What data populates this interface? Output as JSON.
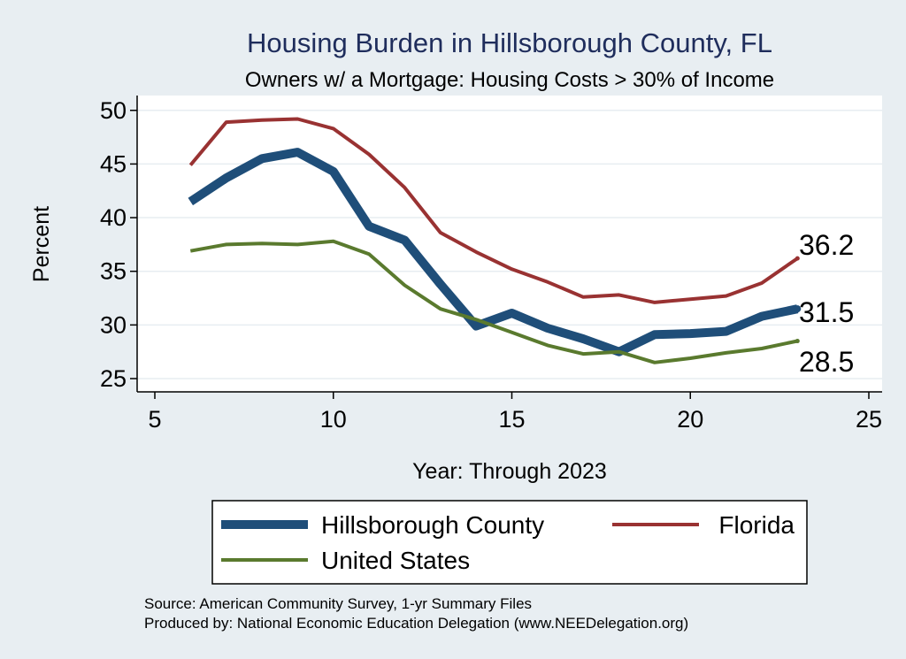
{
  "chart_data": {
    "type": "line",
    "title": "Housing Burden in Hillsborough County, FL",
    "subtitle": "Owners w/ a Mortgage: Housing Costs > 30% of Income",
    "xlabel": "Year: Through 2023",
    "ylabel": "Percent",
    "xlim": [
      5,
      25
    ],
    "ylim": [
      24.5,
      50.5
    ],
    "xticks": [
      5,
      10,
      15,
      20,
      25
    ],
    "yticks": [
      25,
      30,
      35,
      40,
      45,
      50
    ],
    "grid": true,
    "legend_placement": "bottom",
    "x": [
      6,
      7,
      8,
      9,
      10,
      11,
      12,
      13,
      14,
      15,
      16,
      17,
      18,
      19,
      20,
      21,
      22,
      23
    ],
    "series": [
      {
        "name": "Hillsborough County",
        "color": "#1f4e79",
        "values": [
          41.5,
          43.7,
          45.5,
          46.1,
          44.3,
          39.2,
          37.9,
          33.8,
          29.9,
          31.1,
          29.7,
          28.7,
          27.5,
          29.1,
          29.2,
          29.4,
          30.8,
          31.5
        ],
        "end_label": "31.5"
      },
      {
        "name": "Florida",
        "color": "#993232",
        "values": [
          44.9,
          48.9,
          49.1,
          49.2,
          48.3,
          45.9,
          42.8,
          38.6,
          36.8,
          35.2,
          34.0,
          32.6,
          32.8,
          32.1,
          32.4,
          32.7,
          33.9,
          36.2
        ],
        "end_label": "36.2"
      },
      {
        "name": "United States",
        "color": "#5a7a2e",
        "values": [
          36.9,
          37.5,
          37.6,
          37.5,
          37.8,
          36.6,
          33.7,
          31.5,
          30.5,
          29.3,
          28.1,
          27.3,
          27.5,
          26.5,
          26.9,
          27.4,
          27.8,
          28.5
        ],
        "end_label": "28.5"
      }
    ]
  },
  "footer": {
    "source": "Source: American Community Survey, 1-yr Summary Files",
    "produced": "Produced by: National Economic Education Delegation (www.NEEDelegation.org)"
  },
  "colors": {
    "background": "#e8eef2",
    "plot_area": "#ffffff",
    "title": "#1f2d5c"
  }
}
